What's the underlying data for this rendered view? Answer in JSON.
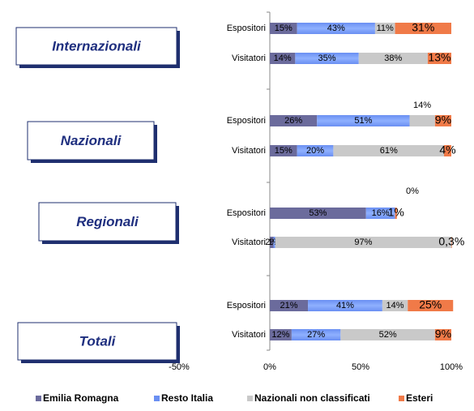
{
  "chart_data": {
    "type": "stacked-bar-horizontal",
    "groups": [
      "Internazionali",
      "Nazionali",
      "Regionali",
      "Totali"
    ],
    "categories": [
      "Espositori",
      "Visitatori",
      "Espositori",
      "Visitatori",
      "Espositori",
      "Visitatori",
      "Espositori",
      "Visitatori"
    ],
    "series": [
      {
        "name": "Emilia Romagna",
        "color": "#6b6b9c",
        "values": [
          15,
          14,
          26,
          15,
          53,
          2,
          21,
          12
        ],
        "value_labels": [
          "15%",
          "14%",
          "26%",
          "15%",
          "53%",
          "2%",
          "21%",
          "12%"
        ]
      },
      {
        "name": "Resto Italia",
        "color": "#6a8ff2",
        "values": [
          43,
          35,
          51,
          20,
          16,
          1,
          41,
          27
        ],
        "value_labels": [
          "43%",
          "35%",
          "51%",
          "20%",
          "16%",
          "1%",
          "41%",
          "27%"
        ]
      },
      {
        "name": "Nazionali non classificati",
        "color": "#c9c9c9",
        "values": [
          11,
          38,
          14,
          61,
          0,
          97,
          14,
          52
        ],
        "value_labels": [
          "11%",
          "38%",
          "14%",
          "61%",
          "0%",
          "97%",
          "14%",
          "52%"
        ]
      },
      {
        "name": "Esteri",
        "color": "#f07a48",
        "values": [
          31,
          13,
          9,
          4,
          1,
          0.3,
          25,
          9
        ],
        "value_labels": [
          "31%",
          "13%",
          "9%",
          "4%",
          "1%",
          "0,3%",
          "25%",
          "9%"
        ]
      }
    ],
    "xlim": [
      -50,
      100
    ],
    "xticks": [
      {
        "value": -50,
        "label": "-50%"
      },
      {
        "value": 0,
        "label": "0%"
      },
      {
        "value": 50,
        "label": "50%"
      },
      {
        "value": 100,
        "label": "100%"
      }
    ],
    "legend": "bottom"
  }
}
